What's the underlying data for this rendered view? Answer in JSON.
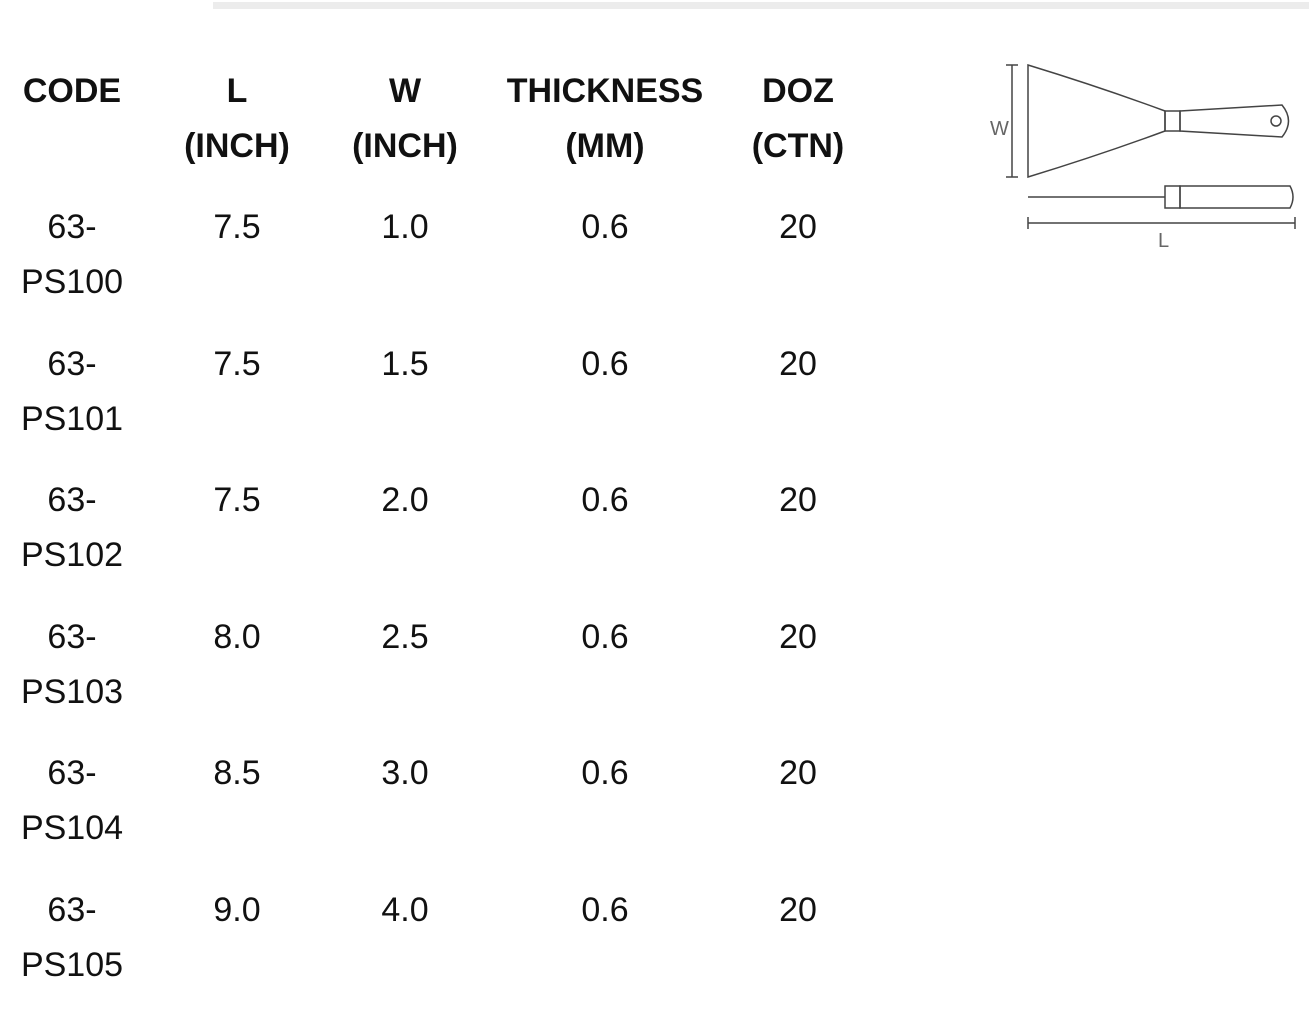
{
  "table": {
    "header": [
      {
        "label": "CODE"
      },
      {
        "label": "L",
        "unit": "(INCH)"
      },
      {
        "label": "W",
        "unit": "(INCH)"
      },
      {
        "label": "THICKNESS",
        "unit": "(MM)"
      },
      {
        "label": "DOZ",
        "unit": "(CTN)"
      }
    ],
    "rows": [
      [
        "63-PS100",
        "7.5",
        "1.0",
        "0.6",
        "20"
      ],
      [
        "63-PS101",
        "7.5",
        "1.5",
        "0.6",
        "20"
      ],
      [
        "63-PS102",
        "7.5",
        "2.0",
        "0.6",
        "20"
      ],
      [
        "63-PS103",
        "8.0",
        "2.5",
        "0.6",
        "20"
      ],
      [
        "63-PS104",
        "8.5",
        "3.0",
        "0.6",
        "20"
      ],
      [
        "63-PS105",
        "9.0",
        "4.0",
        "0.6",
        "20"
      ]
    ]
  },
  "diagram": {
    "w_label": "W",
    "l_label": "L"
  }
}
